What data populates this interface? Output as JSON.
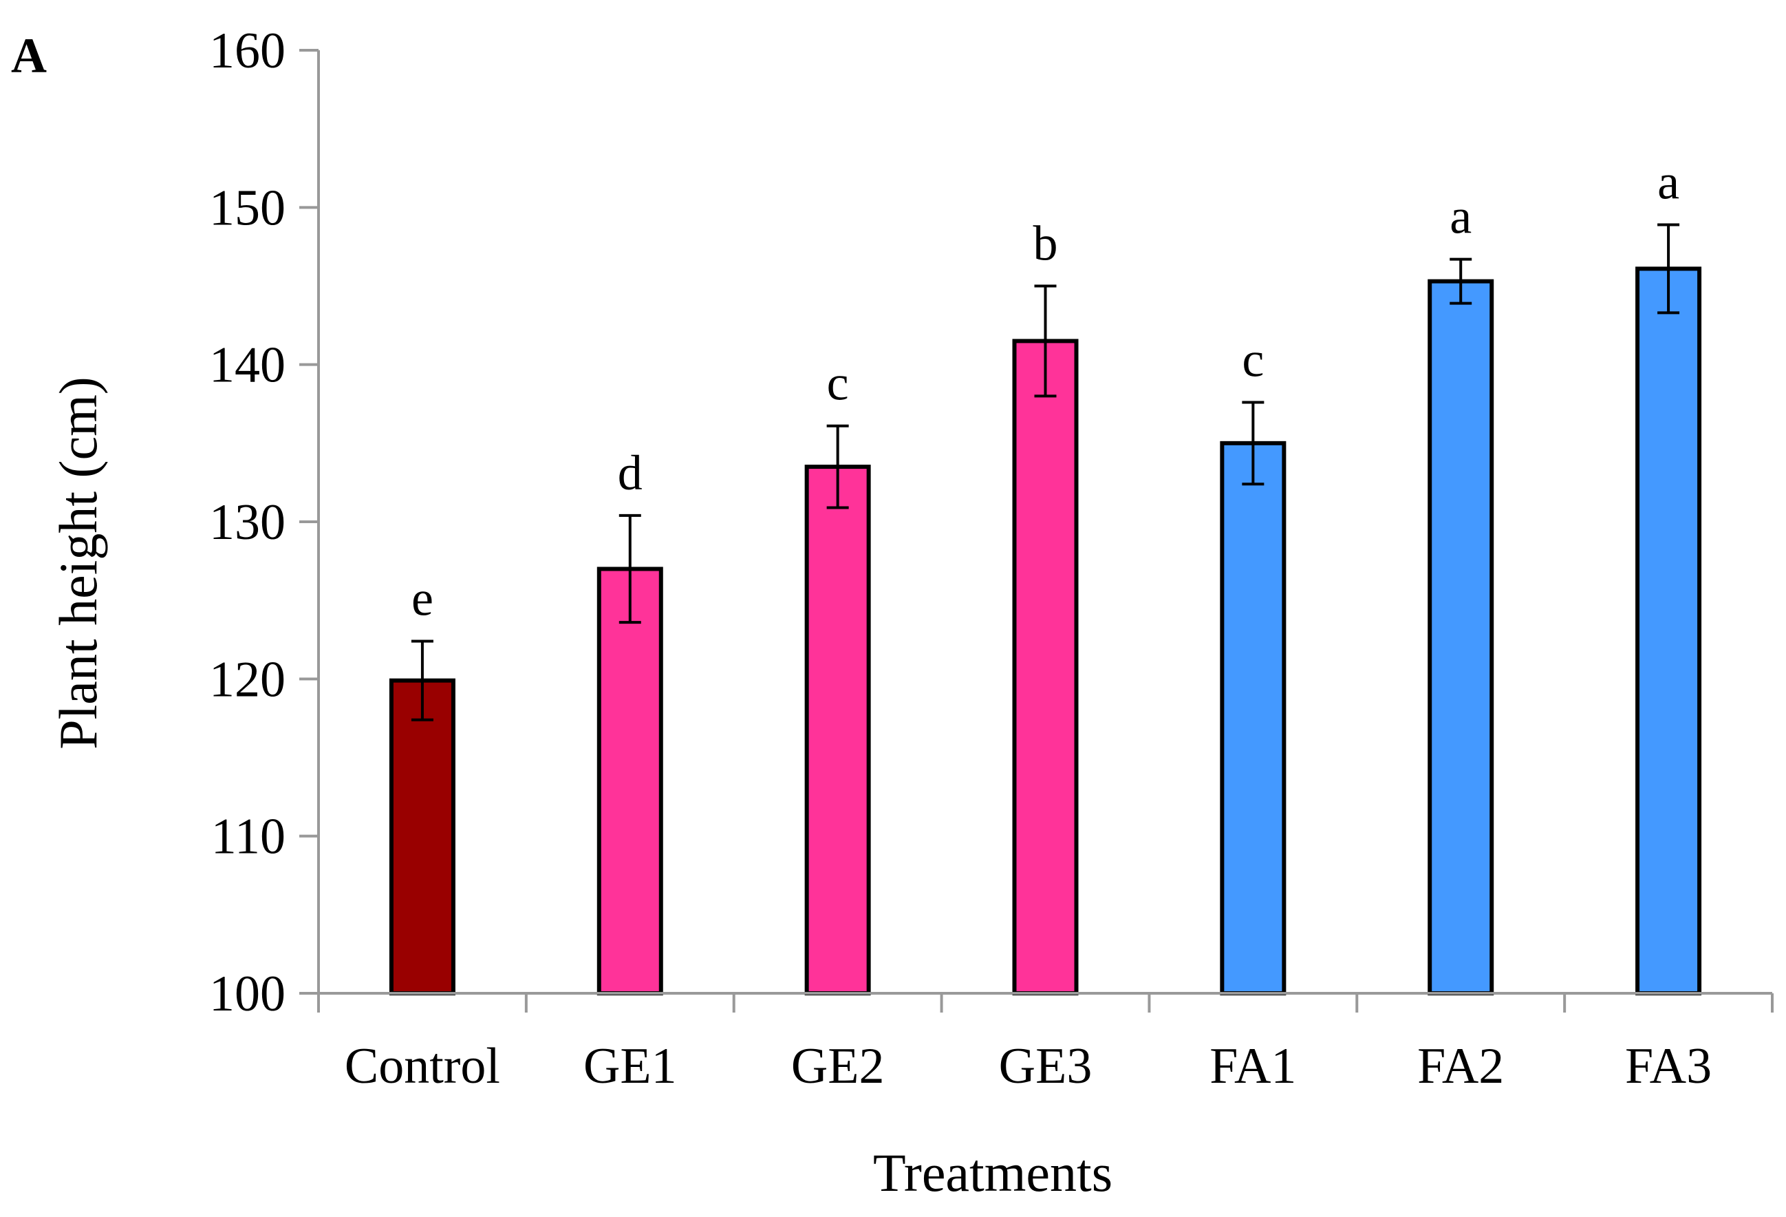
{
  "chart_data": {
    "type": "bar",
    "panel_label": "A",
    "title": "",
    "xlabel": "Treatments",
    "ylabel": "Plant height (cm)",
    "ylim": [
      100,
      160
    ],
    "yticks": [
      100,
      110,
      120,
      130,
      140,
      150,
      160
    ],
    "grid": false,
    "legend": "none",
    "categories": [
      "Control",
      "GE1",
      "GE2",
      "GE3",
      "FA1",
      "FA2",
      "FA3"
    ],
    "values": [
      119.9,
      127.0,
      133.5,
      141.5,
      135.0,
      145.3,
      146.1
    ],
    "error": [
      2.5,
      3.4,
      2.6,
      3.5,
      2.6,
      1.4,
      2.8
    ],
    "significance_letters": [
      "e",
      "d",
      "c",
      "b",
      "c",
      "a",
      "a"
    ],
    "colors": [
      "#990000",
      "#FF3399",
      "#FF3399",
      "#FF3399",
      "#4499FF",
      "#4499FF",
      "#4499FF"
    ],
    "axis_color": "#999999",
    "bar_outline_color": "#000000"
  }
}
